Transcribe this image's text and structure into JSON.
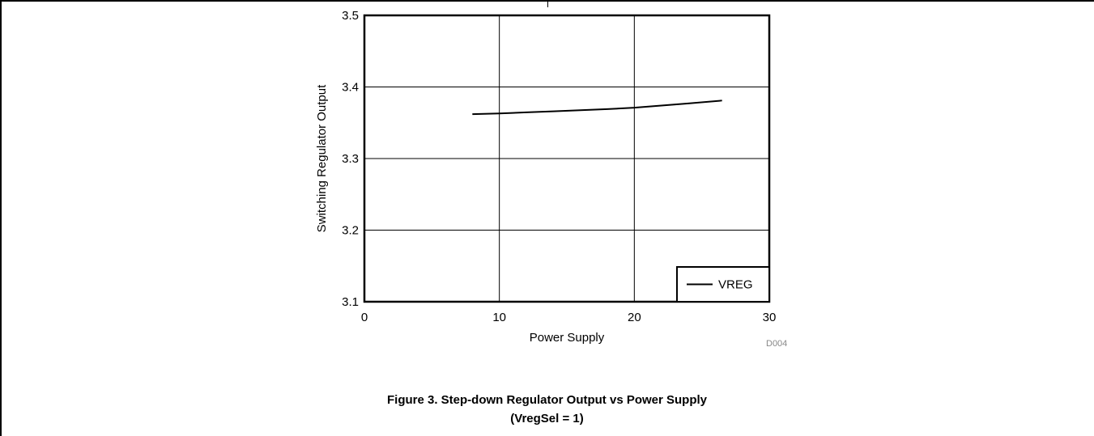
{
  "figure": {
    "caption_line1": "Figure 3. Step-down Regulator Output vs Power Supply",
    "caption_line2": "(VregSel = 1)"
  },
  "chart_data": {
    "type": "line",
    "xlabel": "Power Supply",
    "ylabel": "Switching Regulator Output",
    "xlim": [
      0,
      30
    ],
    "ylim": [
      3.1,
      3.5
    ],
    "x_ticks": [
      0,
      10,
      20,
      30
    ],
    "y_ticks": [
      3.1,
      3.2,
      3.3,
      3.4,
      3.5
    ],
    "x_tick_labels": [
      "0",
      "10",
      "20",
      "30"
    ],
    "y_tick_labels": [
      "3.1",
      "3.2",
      "3.3",
      "3.4",
      "3.5"
    ],
    "grid": true,
    "legend_position": "bottom-right",
    "series": [
      {
        "name": "VREG",
        "color": "#000000",
        "x": [
          8,
          10,
          12,
          14,
          16,
          18,
          20,
          22,
          24,
          26.5
        ],
        "y": [
          3.362,
          3.363,
          3.3645,
          3.366,
          3.3675,
          3.369,
          3.371,
          3.374,
          3.377,
          3.381
        ]
      }
    ],
    "annotation": "D004"
  }
}
